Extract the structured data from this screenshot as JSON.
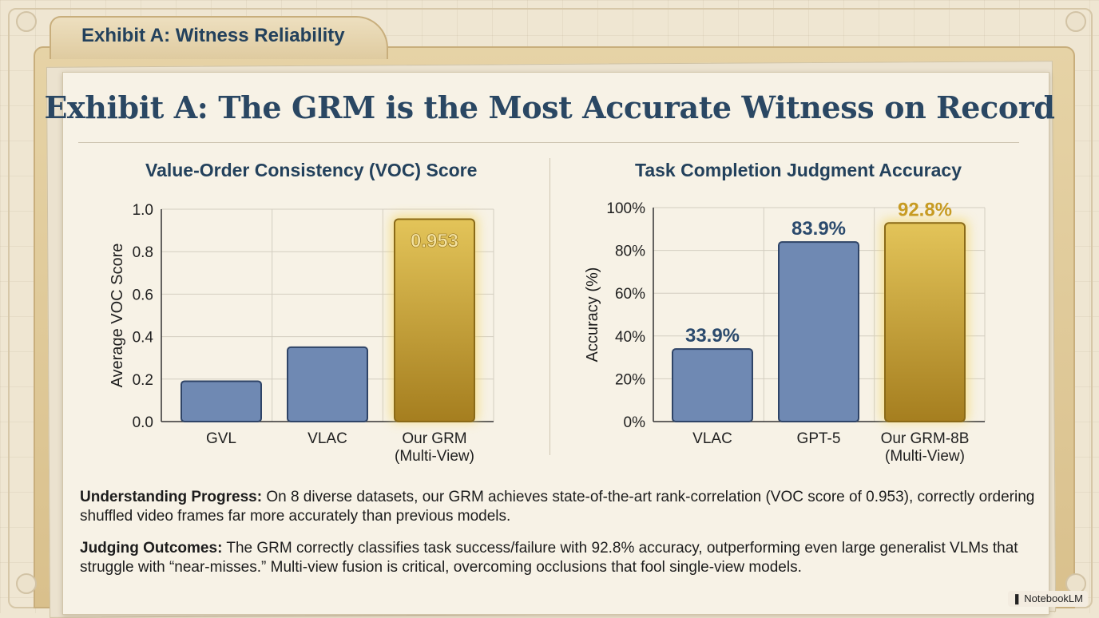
{
  "tab_title": "Exhibit A: Witness Reliability",
  "main_title": "Exhibit A: The GRM is the Most Accurate Witness on Record",
  "chart_data": [
    {
      "type": "bar",
      "title": "Value-Order Consistency (VOC) Score",
      "xlabel": "",
      "ylabel": "Average VOC Score",
      "categories": [
        "GVL",
        "VLAC",
        "Our GRM\n(Multi-View)"
      ],
      "values": [
        0.19,
        0.35,
        0.953
      ],
      "data_labels": [
        "",
        "",
        "0.953"
      ],
      "highlight_index": 2,
      "ylim": [
        0,
        1.0
      ],
      "yticks": [
        "0.0",
        "0.2",
        "0.4",
        "0.6",
        "0.8",
        "1.0"
      ],
      "grid": true
    },
    {
      "type": "bar",
      "title": "Task Completion Judgment Accuracy",
      "xlabel": "",
      "ylabel": "Accuracy (%)",
      "categories": [
        "VLAC",
        "GPT-5",
        "Our GRM-8B\n(Multi-View)"
      ],
      "values": [
        33.9,
        83.9,
        92.8
      ],
      "data_labels": [
        "33.9%",
        "83.9%",
        "92.8%"
      ],
      "highlight_index": 2,
      "ylim": [
        0,
        100
      ],
      "yticks": [
        "0%",
        "20%",
        "40%",
        "60%",
        "80%",
        "100%"
      ],
      "grid": true
    }
  ],
  "notes": {
    "progress_label": "Understanding Progress:",
    "progress_text": " On 8 diverse datasets, our GRM achieves state-of-the-art rank-correlation (VOC score of 0.953), correctly ordering shuffled video frames far more accurately than previous models.",
    "judging_label": "Judging Outcomes:",
    "judging_text": " The GRM correctly classifies task success/failure with 92.8% accuracy, outperforming even large generalist VLMs that struggle with “near-misses.” Multi-view fusion is critical, overcoming occlusions that fool single-view models."
  },
  "brand": "NotebookLM",
  "colors": {
    "bar_blue": "#6f89b3",
    "bar_blue_stroke": "#2f4467",
    "bar_gold_top": "#e2c156",
    "bar_gold_bottom": "#a57e1f",
    "label_blue": "#2b4a6d",
    "label_gold": "#c79b23"
  }
}
